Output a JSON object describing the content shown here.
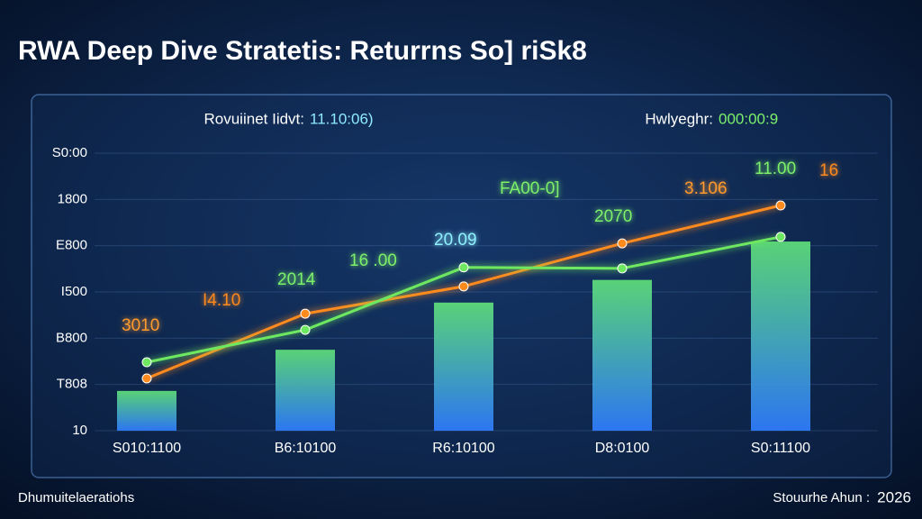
{
  "chart_data": {
    "type": "bar-line",
    "title": "RWA Deep Dive Stratetis: Returrns So] riSk8",
    "subtitle_left": {
      "label": "Rovuiinet Iidvt:",
      "value_text": "11.10:06)"
    },
    "subtitle_right": {
      "label": "Hwlyeghr:",
      "value_text": "000:00:9"
    },
    "categories": [
      "S010:1100",
      "B6:10100",
      "R6:10100",
      "D8:0100",
      "S0:11100"
    ],
    "ylim": [
      0,
      6
    ],
    "yticks": [
      {
        "value": 0,
        "label": "10"
      },
      {
        "value": 1,
        "label": "T808"
      },
      {
        "value": 2,
        "label": "B800"
      },
      {
        "value": 3,
        "label": "I500"
      },
      {
        "value": 4,
        "label": "E800"
      },
      {
        "value": 5,
        "label": "1800"
      },
      {
        "value": 6,
        "label": "S0:00"
      }
    ],
    "grid": true,
    "bars": {
      "color_top": "#5fe07a",
      "color_bottom": "#2f7dff",
      "values": [
        0.86,
        1.75,
        2.77,
        3.26,
        4.09
      ]
    },
    "series": [
      {
        "color": "#ff8a1e",
        "values": [
          1.13,
          2.53,
          3.12,
          4.05,
          4.87
        ]
      },
      {
        "color": "#6ee860",
        "values": [
          1.48,
          2.18,
          3.53,
          3.51,
          4.19
        ]
      }
    ],
    "annotations": [
      {
        "text": "3010",
        "color": "#ff9a2e"
      },
      {
        "text": "I4.10",
        "color": "#ff8a1e"
      },
      {
        "text": "2014",
        "color": "#7cf06a"
      },
      {
        "text": "16 .00",
        "color": "#7cf06a"
      },
      {
        "text": "20.09",
        "color": "#8ff0ff"
      },
      {
        "text": "FA00-0]",
        "color": "#7cf06a"
      },
      {
        "text": "2070",
        "color": "#7cf06a"
      },
      {
        "text": "3.106",
        "color": "#ff9a2e"
      },
      {
        "text": "11.00",
        "color": "#7cf06a"
      },
      {
        "text": "16",
        "color": "#ff8a1e"
      }
    ],
    "footer_left": "Dhumuitelaeratiohs",
    "footer_right": {
      "label": "Stouurhe Ahun :",
      "year": "2026"
    }
  }
}
